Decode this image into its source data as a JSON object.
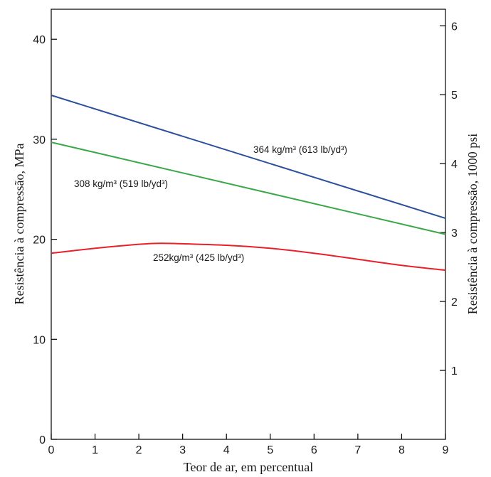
{
  "chart_data": {
    "type": "line",
    "xlabel": "Teor de ar, em percentual",
    "ylabel": "Resistência à compressão, MPa",
    "y2label": "Resistência à compressão, 1000 psi",
    "xlim": [
      0,
      9
    ],
    "ylim": [
      0,
      43
    ],
    "y2lim": [
      0,
      6.24
    ],
    "x_ticks": [
      0,
      1,
      2,
      3,
      4,
      5,
      6,
      7,
      8,
      9
    ],
    "y_ticks": [
      0,
      10,
      20,
      30,
      40
    ],
    "y2_ticks": [
      1,
      2,
      3,
      4,
      5,
      6
    ],
    "grid": false,
    "series": [
      {
        "name": "364 kg/m³ (613 lb/yd³)",
        "color": "#2a4f9c",
        "x": [
          0,
          9
        ],
        "y": [
          34.4,
          22.1
        ]
      },
      {
        "name": "308 kg/m³ (519 lb/yd³)",
        "color": "#3aa84a",
        "x": [
          0,
          9
        ],
        "y": [
          29.7,
          20.5
        ]
      },
      {
        "name": "252kg/m³ (425 lb/yd³)",
        "color": "#e8202a",
        "x": [
          0,
          1,
          2,
          2.5,
          3,
          4,
          5,
          6,
          7,
          8,
          9
        ],
        "y": [
          18.6,
          19.1,
          19.5,
          19.6,
          19.55,
          19.4,
          19.1,
          18.6,
          18.0,
          17.4,
          16.9
        ]
      }
    ]
  }
}
